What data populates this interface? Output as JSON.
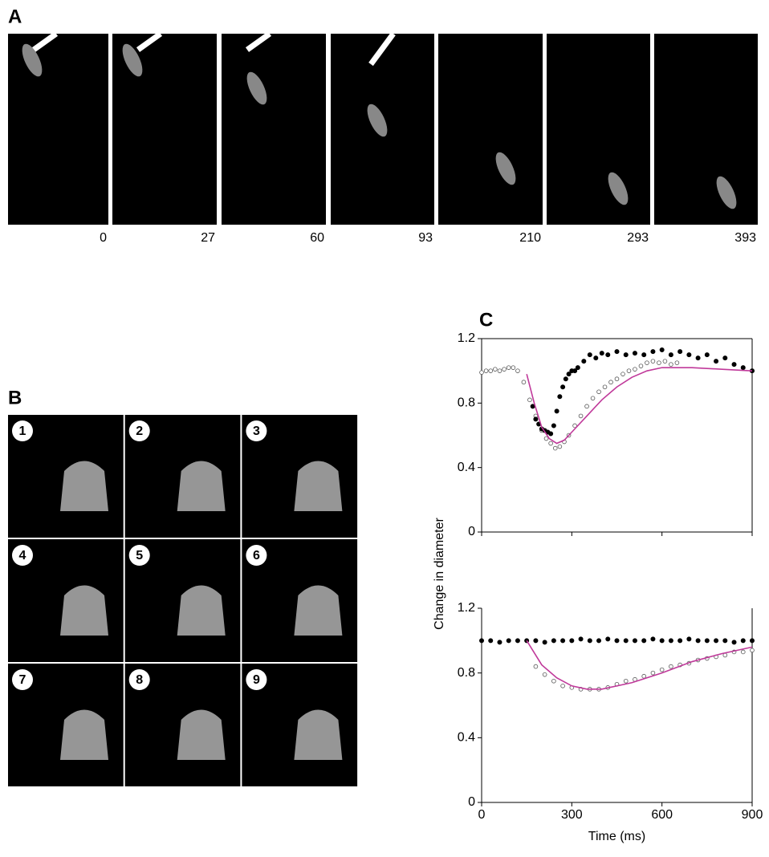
{
  "panel_a": {
    "label": "A",
    "times": [
      0,
      27,
      60,
      93,
      210,
      293,
      393
    ]
  },
  "panel_b": {
    "label": "B",
    "frames": [
      "1",
      "2",
      "3",
      "4",
      "5",
      "6",
      "7",
      "8",
      "9"
    ]
  },
  "panel_c": {
    "label": "C",
    "y_label": "Change in diameter"
  },
  "chart_data": [
    {
      "type": "scatter",
      "xlim": [
        0,
        900
      ],
      "ylim": [
        0,
        1.2
      ],
      "yticks": [
        0,
        0.4,
        0.8,
        1.2
      ],
      "frame": true,
      "series": [
        {
          "marker": "open",
          "color": "#555555",
          "x": [
            0,
            15,
            30,
            45,
            60,
            75,
            90,
            105,
            120,
            140,
            160,
            180,
            200,
            215,
            230,
            245,
            260,
            275,
            290,
            310,
            330,
            350,
            370,
            390,
            410,
            430,
            450,
            470,
            490,
            510,
            530,
            550,
            570,
            590,
            610,
            630,
            650,
            900
          ],
          "values": [
            0.99,
            1.0,
            1.0,
            1.01,
            1.0,
            1.01,
            1.02,
            1.02,
            1.0,
            0.93,
            0.82,
            0.72,
            0.63,
            0.58,
            0.55,
            0.52,
            0.53,
            0.56,
            0.6,
            0.66,
            0.72,
            0.78,
            0.83,
            0.87,
            0.9,
            0.93,
            0.95,
            0.98,
            1.0,
            1.01,
            1.03,
            1.05,
            1.06,
            1.05,
            1.06,
            1.04,
            1.05,
            1.0
          ]
        },
        {
          "marker": "filled",
          "color": "#000000",
          "x": [
            170,
            180,
            190,
            200,
            210,
            220,
            230,
            240,
            250,
            260,
            270,
            280,
            290,
            300,
            310,
            320,
            340,
            360,
            380,
            400,
            420,
            450,
            480,
            510,
            540,
            570,
            600,
            630,
            660,
            690,
            720,
            750,
            780,
            810,
            840,
            870,
            900
          ],
          "values": [
            0.78,
            0.7,
            0.67,
            0.64,
            0.63,
            0.62,
            0.61,
            0.66,
            0.75,
            0.84,
            0.9,
            0.95,
            0.98,
            1.0,
            1.0,
            1.02,
            1.06,
            1.1,
            1.08,
            1.11,
            1.1,
            1.12,
            1.1,
            1.11,
            1.1,
            1.12,
            1.13,
            1.1,
            1.12,
            1.1,
            1.08,
            1.1,
            1.06,
            1.08,
            1.04,
            1.02,
            1.0
          ]
        },
        {
          "marker": "line",
          "color": "#c0399a",
          "x": [
            150,
            175,
            200,
            225,
            250,
            275,
            300,
            350,
            400,
            450,
            500,
            550,
            600,
            650,
            700,
            800,
            900
          ],
          "values": [
            0.98,
            0.8,
            0.65,
            0.58,
            0.55,
            0.57,
            0.62,
            0.72,
            0.82,
            0.9,
            0.96,
            1.0,
            1.02,
            1.02,
            1.02,
            1.01,
            1.0
          ]
        }
      ]
    },
    {
      "type": "scatter",
      "xlim": [
        0,
        900
      ],
      "ylim": [
        0,
        1.2
      ],
      "yticks": [
        0,
        0.4,
        0.8,
        1.2
      ],
      "xticks": [
        0,
        300,
        600,
        900
      ],
      "x_label": "Time (ms)",
      "frame": false,
      "series": [
        {
          "marker": "filled",
          "color": "#000000",
          "x": [
            0,
            30,
            60,
            90,
            120,
            150,
            180,
            210,
            240,
            270,
            300,
            330,
            360,
            390,
            420,
            450,
            480,
            510,
            540,
            570,
            600,
            630,
            660,
            690,
            720,
            750,
            780,
            810,
            840,
            870,
            900
          ],
          "values": [
            1.0,
            1.0,
            0.99,
            1.0,
            1.0,
            1.0,
            1.0,
            0.99,
            1.0,
            1.0,
            1.0,
            1.01,
            1.0,
            1.0,
            1.01,
            1.0,
            1.0,
            1.0,
            1.0,
            1.01,
            1.0,
            1.0,
            1.0,
            1.01,
            1.0,
            1.0,
            1.0,
            1.0,
            0.99,
            1.0,
            1.0
          ]
        },
        {
          "marker": "open",
          "color": "#555555",
          "x": [
            180,
            210,
            240,
            270,
            300,
            330,
            360,
            390,
            420,
            450,
            480,
            510,
            540,
            570,
            600,
            630,
            660,
            690,
            720,
            750,
            780,
            810,
            840,
            870,
            900
          ],
          "values": [
            0.84,
            0.79,
            0.75,
            0.72,
            0.71,
            0.7,
            0.7,
            0.7,
            0.71,
            0.73,
            0.75,
            0.76,
            0.78,
            0.8,
            0.82,
            0.84,
            0.85,
            0.86,
            0.88,
            0.89,
            0.9,
            0.91,
            0.93,
            0.93,
            0.94
          ]
        },
        {
          "marker": "line",
          "color": "#c0399a",
          "x": [
            150,
            200,
            250,
            300,
            350,
            400,
            500,
            600,
            700,
            800,
            900
          ],
          "values": [
            1.0,
            0.85,
            0.77,
            0.72,
            0.7,
            0.7,
            0.74,
            0.8,
            0.87,
            0.92,
            0.96
          ]
        }
      ]
    }
  ]
}
